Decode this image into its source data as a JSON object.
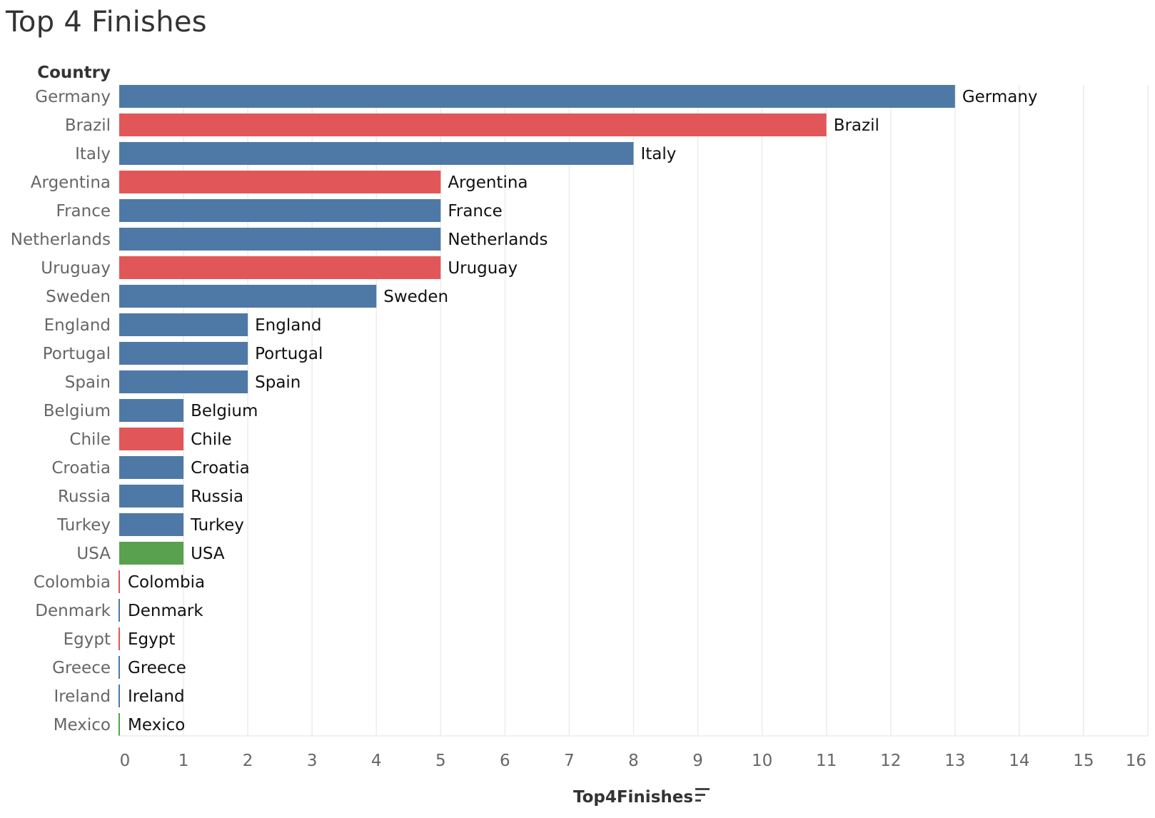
{
  "title": "Top 4 Finishes",
  "colors": {
    "blue": "#4e79a7",
    "red": "#e15759",
    "green": "#59a14f",
    "gridline": "#ececec"
  },
  "chart_data": {
    "type": "bar",
    "orientation": "horizontal",
    "title": "Top 4 Finishes",
    "row_header": "Country",
    "xlabel": "Top4Finishes",
    "x_sort_icon": "sort-descending-icon",
    "xlim": [
      0,
      16
    ],
    "x_ticks": [
      0,
      1,
      2,
      3,
      4,
      5,
      6,
      7,
      8,
      9,
      10,
      11,
      12,
      13,
      14,
      15,
      16
    ],
    "grid": true,
    "categories": [
      "Germany",
      "Brazil",
      "Italy",
      "Argentina",
      "France",
      "Netherlands",
      "Uruguay",
      "Sweden",
      "England",
      "Portugal",
      "Spain",
      "Belgium",
      "Chile",
      "Croatia",
      "Russia",
      "Turkey",
      "USA",
      "Colombia",
      "Denmark",
      "Egypt",
      "Greece",
      "Ireland",
      "Mexico"
    ],
    "values": [
      13,
      11,
      8,
      5,
      5,
      5,
      5,
      4,
      2,
      2,
      2,
      1,
      1,
      1,
      1,
      1,
      1,
      0,
      0,
      0,
      0,
      0,
      0
    ],
    "bar_colors": [
      "blue",
      "red",
      "blue",
      "red",
      "blue",
      "blue",
      "red",
      "blue",
      "blue",
      "blue",
      "blue",
      "blue",
      "red",
      "blue",
      "blue",
      "blue",
      "green",
      "red",
      "blue",
      "red",
      "blue",
      "blue",
      "green"
    ],
    "data_labels": [
      "Germany",
      "Brazil",
      "Italy",
      "Argentina",
      "France",
      "Netherlands",
      "Uruguay",
      "Sweden",
      "England",
      "Portugal",
      "Spain",
      "Belgium",
      "Chile",
      "Croatia",
      "Russia",
      "Turkey",
      "USA",
      "Colombia",
      "Denmark",
      "Egypt",
      "Greece",
      "Ireland",
      "Mexico"
    ]
  }
}
